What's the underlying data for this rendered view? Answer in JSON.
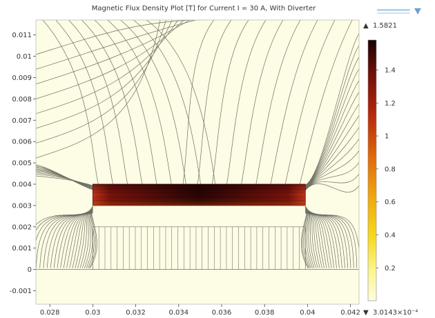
{
  "chart_data": {
    "type": "heatmap",
    "title": "Magnetic Flux Density Plot [T] for Current I = 30 A, With Diverter",
    "xlabel": "",
    "ylabel": "",
    "xlim": [
      0.02735,
      0.0424
    ],
    "ylim": [
      -0.00163,
      0.0117
    ],
    "x_ticks": [
      "0.028",
      "0.03",
      "0.032",
      "0.034",
      "0.036",
      "0.038",
      "0.04",
      "0.042"
    ],
    "x_tick_values": [
      0.028,
      0.03,
      0.032,
      0.034,
      0.036,
      0.038,
      0.04,
      0.042
    ],
    "y_ticks": [
      "-0.001",
      "0",
      "0.001",
      "0.002",
      "0.003",
      "0.004",
      "0.005",
      "0.006",
      "0.007",
      "0.008",
      "0.009",
      "0.01",
      "0.011"
    ],
    "y_tick_values": [
      -0.001,
      0,
      0.001,
      0.002,
      0.003,
      0.004,
      0.005,
      0.006,
      0.007,
      0.008,
      0.009,
      0.01,
      0.011
    ],
    "diverter_region": {
      "x": [
        0.03,
        0.0399
      ],
      "y": [
        0.003,
        0.004
      ]
    },
    "coil_region": {
      "x": [
        0.03,
        0.0399
      ],
      "y": [
        0.0,
        0.002
      ]
    },
    "colorbar": {
      "max_label": "1.5821",
      "min_label": "3.0143×10⁻⁴",
      "max_value": 1.5821,
      "min_value": 0.00030143,
      "ticks": [
        "0.2",
        "0.4",
        "0.6",
        "0.8",
        "1",
        "1.2",
        "1.4"
      ],
      "tick_values": [
        0.2,
        0.4,
        0.6,
        0.8,
        1.0,
        1.2,
        1.4
      ],
      "colormap": [
        "#fdfde0",
        "#fbf58a",
        "#f6d81a",
        "#f0a610",
        "#df6a0a",
        "#b3260c",
        "#6b0f0a",
        "#1a0203"
      ]
    },
    "grid": false
  },
  "colors": {
    "background": "#fdfce4",
    "contour": "#6e6e64",
    "axis": "#444444"
  },
  "arrow_up": "▲",
  "arrow_down": "▼"
}
